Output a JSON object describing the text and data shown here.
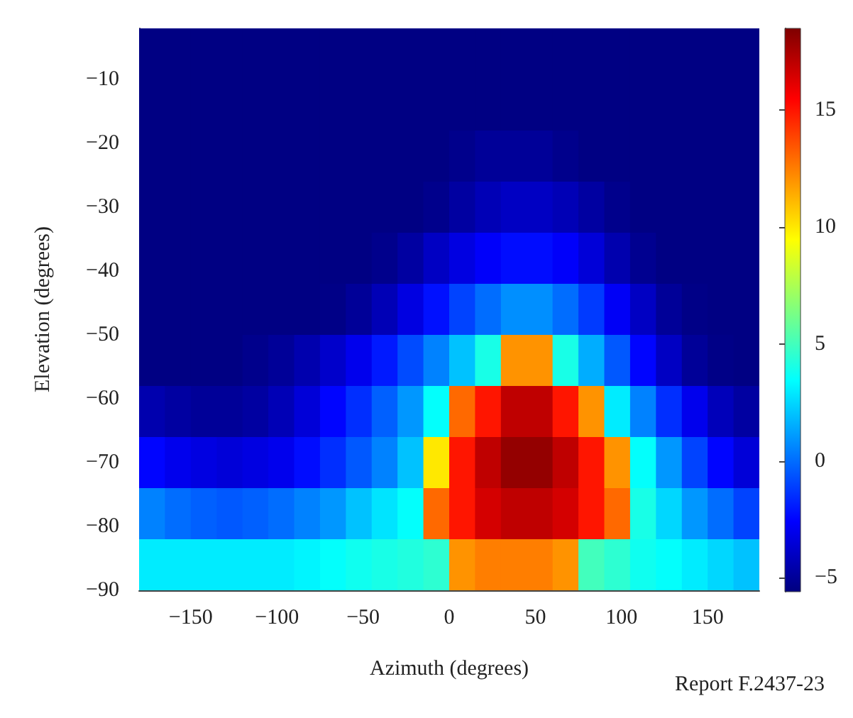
{
  "chart_data": {
    "type": "heatmap",
    "xlabel": "Azimuth (degrees)",
    "ylabel": "Elevation (degrees)",
    "annotations": [
      "Report F.2437-23"
    ],
    "xlim": [
      -180,
      180
    ],
    "ylim": [
      -90,
      -2
    ],
    "xticks": [
      -150,
      -100,
      -50,
      0,
      50,
      100,
      150
    ],
    "yticks": [
      -90,
      -80,
      -70,
      -60,
      -50,
      -40,
      -30,
      -20,
      -10
    ],
    "clim": [
      -5.6,
      18.5
    ],
    "cticks": [
      -5,
      0,
      5,
      10,
      15
    ],
    "cells": [
      [
        -5.5,
        -5.5,
        -5.5,
        -5.5,
        -5.5,
        -5.5,
        -5.5,
        -5.5,
        -5.5,
        -5.5,
        -5.5,
        -5.5,
        -5.5,
        -5.5,
        -5.5,
        -5.5,
        -5.5,
        -5.5,
        -5.5,
        -5.5,
        -5.5,
        -5.5,
        -5.5,
        -5.5
      ],
      [
        -5.5,
        -5.5,
        -5.5,
        -5.5,
        -5.5,
        -5.5,
        -5.5,
        -5.5,
        -5.5,
        -5.5,
        -5.5,
        -5.5,
        -5.5,
        -5.5,
        -5.5,
        -5.5,
        -5.5,
        -5.5,
        -5.5,
        -5.5,
        -5.5,
        -5.5,
        -5.5,
        -5.5
      ],
      [
        -5.5,
        -5.5,
        -5.5,
        -5.5,
        -5.5,
        -5.5,
        -5.5,
        -5.5,
        -5.5,
        -5.5,
        -5.5,
        -5.5,
        -5.3,
        -5,
        -5,
        -5,
        -5.3,
        -5.5,
        -5.5,
        -5.5,
        -5.5,
        -5.5,
        -5.5,
        -5.5
      ],
      [
        -5.5,
        -5.5,
        -5.5,
        -5.5,
        -5.5,
        -5.5,
        -5.5,
        -5.5,
        -5.5,
        -5.5,
        -5.5,
        -5.3,
        -4.8,
        -4.3,
        -4,
        -4,
        -4.3,
        -4.8,
        -5.3,
        -5.5,
        -5.5,
        -5.5,
        -5.5,
        -5.5
      ],
      [
        -5.5,
        -5.5,
        -5.5,
        -5.5,
        -5.5,
        -5.5,
        -5.5,
        -5.5,
        -5.5,
        -5.3,
        -4.8,
        -4,
        -3.3,
        -2.7,
        -2.3,
        -2.3,
        -2.7,
        -3.5,
        -4.5,
        -5.2,
        -5.5,
        -5.5,
        -5.5,
        -5.5
      ],
      [
        -5.5,
        -5.5,
        -5.5,
        -5.5,
        -5.5,
        -5.5,
        -5.5,
        -5.4,
        -5,
        -4.3,
        -3.3,
        -2.2,
        -1,
        0,
        0.8,
        0.8,
        0,
        -1.2,
        -2.8,
        -4,
        -5,
        -5.4,
        -5.5,
        -5.5
      ],
      [
        -5.5,
        -5.5,
        -5.5,
        -5.5,
        -5.3,
        -5,
        -4.5,
        -3.8,
        -3,
        -2,
        -0.8,
        0.5,
        2,
        4,
        12,
        12,
        4,
        1.5,
        -0.5,
        -2.5,
        -4,
        -5,
        -5.4,
        -5.5
      ],
      [
        -4.5,
        -4.8,
        -5,
        -5,
        -4.8,
        -4.3,
        -3.5,
        -2.5,
        -1.5,
        -0.3,
        1,
        3.5,
        13,
        15,
        17,
        17,
        15,
        12,
        3,
        0.5,
        -1.5,
        -3,
        -4.2,
        -4.8
      ],
      [
        -2.5,
        -3,
        -3.3,
        -3.5,
        -3.3,
        -3,
        -2.3,
        -1.5,
        -0.5,
        0.5,
        2,
        10,
        15,
        17,
        18,
        18,
        17,
        15,
        12,
        3.5,
        1,
        -1,
        -2.5,
        -3.5
      ],
      [
        0.5,
        0,
        -0.3,
        -0.5,
        -0.3,
        0,
        0.5,
        1,
        2,
        2.8,
        3.5,
        13,
        15,
        16.5,
        17,
        17,
        16.5,
        15,
        13,
        4,
        2.5,
        1,
        0,
        -1
      ],
      [
        3,
        3,
        3,
        3,
        3,
        3,
        3.2,
        3.5,
        3.8,
        4,
        4.2,
        4.5,
        12,
        12.5,
        12.5,
        12.5,
        12,
        5,
        4.5,
        3.8,
        3.5,
        3,
        2.5,
        2
      ]
    ]
  }
}
